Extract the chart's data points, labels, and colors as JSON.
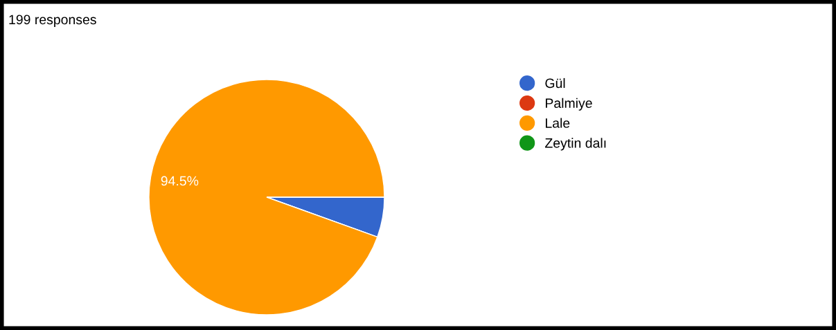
{
  "chart_data": {
    "type": "pie",
    "title": "199 responses",
    "categories": [
      "Gül",
      "Palmiye",
      "Lale",
      "Zeytin dalı"
    ],
    "values": [
      5.5,
      0,
      94.5,
      0
    ],
    "colors": [
      "#3366cc",
      "#dc3912",
      "#ff9900",
      "#109618"
    ],
    "value_labels": [
      null,
      null,
      "94.5%",
      null
    ],
    "legend": "right"
  }
}
